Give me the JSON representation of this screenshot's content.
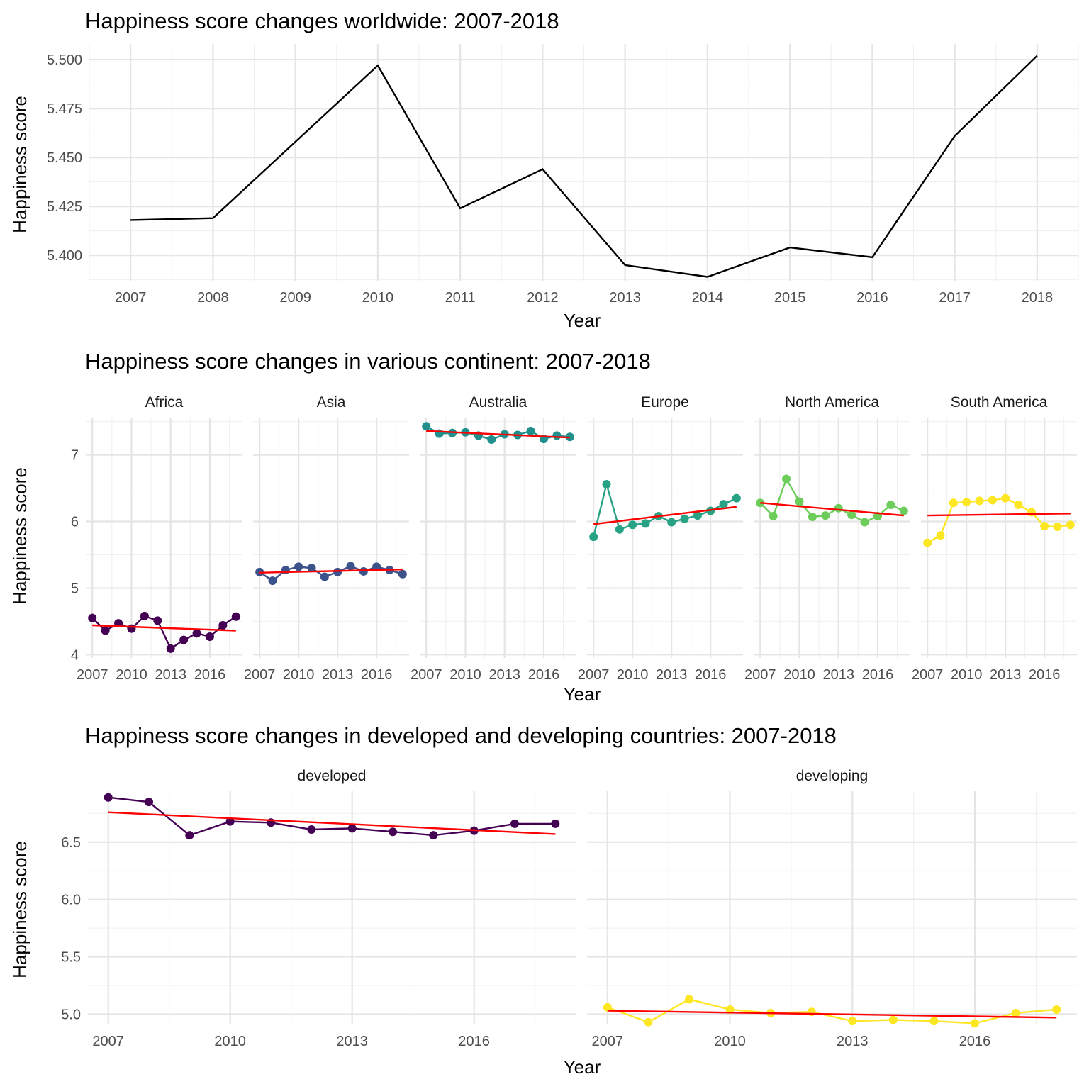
{
  "chart_data": [
    {
      "type": "line",
      "title": "Happiness score changes worldwide: 2007-2018",
      "xlabel": "Year",
      "ylabel": "Happiness score",
      "xlim": [
        2006.5,
        2018.5
      ],
      "ylim": [
        5.387,
        5.508
      ],
      "x_ticks": [
        "2007",
        "2008",
        "2009",
        "2010",
        "2011",
        "2012",
        "2013",
        "2014",
        "2015",
        "2016",
        "2017",
        "2018"
      ],
      "y_ticks": [
        "5.400",
        "5.425",
        "5.450",
        "5.475",
        "5.500"
      ],
      "grid": true,
      "series": [
        {
          "color": "#000000",
          "x": [
            2007,
            2008,
            2009,
            2010,
            2011,
            2012,
            2013,
            2014,
            2015,
            2016,
            2017,
            2018
          ],
          "values": [
            5.418,
            5.419,
            5.458,
            5.497,
            5.424,
            5.444,
            5.395,
            5.389,
            5.404,
            5.399,
            5.461,
            5.502
          ]
        }
      ]
    },
    {
      "type": "line",
      "title": "Happiness score changes in various continent: 2007-2018",
      "xlabel": "Year",
      "ylabel": "Happiness score",
      "xlim": [
        2006.5,
        2018.5
      ],
      "ylim": [
        3.95,
        7.55
      ],
      "x_ticks": [
        "2007",
        "2010",
        "2013",
        "2016"
      ],
      "y_ticks": [
        "4",
        "5",
        "6",
        "7"
      ],
      "grid": true,
      "trend_color": "#ff0000",
      "panels": [
        {
          "name": "Africa",
          "color": "#440154",
          "x": [
            2007,
            2008,
            2009,
            2010,
            2011,
            2012,
            2013,
            2014,
            2015,
            2016,
            2017,
            2018
          ],
          "values": [
            4.55,
            4.36,
            4.47,
            4.39,
            4.58,
            4.51,
            4.09,
            4.22,
            4.32,
            4.27,
            4.44,
            4.57
          ],
          "trend": [
            4.44,
            4.36
          ]
        },
        {
          "name": "Asia",
          "color": "#3b528b",
          "x": [
            2007,
            2008,
            2009,
            2010,
            2011,
            2012,
            2013,
            2014,
            2015,
            2016,
            2017,
            2018
          ],
          "values": [
            5.24,
            5.11,
            5.27,
            5.32,
            5.3,
            5.17,
            5.24,
            5.33,
            5.25,
            5.32,
            5.27,
            5.21
          ],
          "trend": [
            5.23,
            5.28
          ]
        },
        {
          "name": "Australia",
          "color": "#21908d",
          "x": [
            2007,
            2008,
            2009,
            2010,
            2011,
            2012,
            2013,
            2014,
            2015,
            2016,
            2017,
            2018
          ],
          "values": [
            7.43,
            7.32,
            7.33,
            7.34,
            7.29,
            7.23,
            7.31,
            7.3,
            7.36,
            7.24,
            7.29,
            7.27
          ],
          "trend": [
            7.36,
            7.26
          ]
        },
        {
          "name": "Europe",
          "color": "#27a285",
          "x": [
            2007,
            2008,
            2009,
            2010,
            2011,
            2012,
            2013,
            2014,
            2015,
            2016,
            2017,
            2018
          ],
          "values": [
            5.77,
            6.56,
            5.88,
            5.95,
            5.97,
            6.08,
            5.99,
            6.04,
            6.09,
            6.16,
            6.26,
            6.35
          ],
          "trend": [
            5.96,
            6.22
          ]
        },
        {
          "name": "North America",
          "color": "#6ccd5a",
          "x": [
            2007,
            2008,
            2009,
            2010,
            2011,
            2012,
            2013,
            2014,
            2015,
            2016,
            2017,
            2018
          ],
          "values": [
            6.28,
            6.08,
            6.64,
            6.3,
            6.07,
            6.09,
            6.2,
            6.1,
            5.99,
            6.08,
            6.25,
            6.16
          ],
          "trend": [
            6.28,
            6.09
          ]
        },
        {
          "name": "South America",
          "color": "#fde725",
          "x": [
            2007,
            2008,
            2009,
            2010,
            2011,
            2012,
            2013,
            2014,
            2015,
            2016,
            2017,
            2018
          ],
          "values": [
            5.68,
            5.79,
            6.28,
            6.29,
            6.31,
            6.32,
            6.35,
            6.25,
            6.14,
            5.93,
            5.92,
            5.95
          ],
          "trend": [
            6.09,
            6.12
          ]
        }
      ]
    },
    {
      "type": "line",
      "title": "Happiness score changes in developed and developing countries: 2007-2018",
      "xlabel": "Year",
      "ylabel": "Happiness score",
      "xlim": [
        2006.5,
        2018.5
      ],
      "ylim": [
        4.91,
        6.95
      ],
      "x_ticks": [
        "2007",
        "2010",
        "2013",
        "2016"
      ],
      "y_ticks": [
        "5.0",
        "5.5",
        "6.0",
        "6.5"
      ],
      "grid": true,
      "trend_color": "#ff0000",
      "panels": [
        {
          "name": "developed",
          "color": "#440154",
          "x": [
            2007,
            2008,
            2009,
            2010,
            2011,
            2012,
            2013,
            2014,
            2015,
            2016,
            2017,
            2018
          ],
          "values": [
            6.89,
            6.85,
            6.56,
            6.68,
            6.67,
            6.61,
            6.62,
            6.59,
            6.56,
            6.6,
            6.66,
            6.66
          ],
          "trend": [
            6.76,
            6.57
          ]
        },
        {
          "name": "developing",
          "color": "#fde725",
          "x": [
            2007,
            2008,
            2009,
            2010,
            2011,
            2012,
            2013,
            2014,
            2015,
            2016,
            2017,
            2018
          ],
          "values": [
            5.06,
            4.93,
            5.13,
            5.04,
            5.01,
            5.02,
            4.94,
            4.95,
            4.94,
            4.92,
            5.01,
            5.04
          ],
          "trend": [
            5.03,
            4.97
          ]
        }
      ]
    }
  ]
}
